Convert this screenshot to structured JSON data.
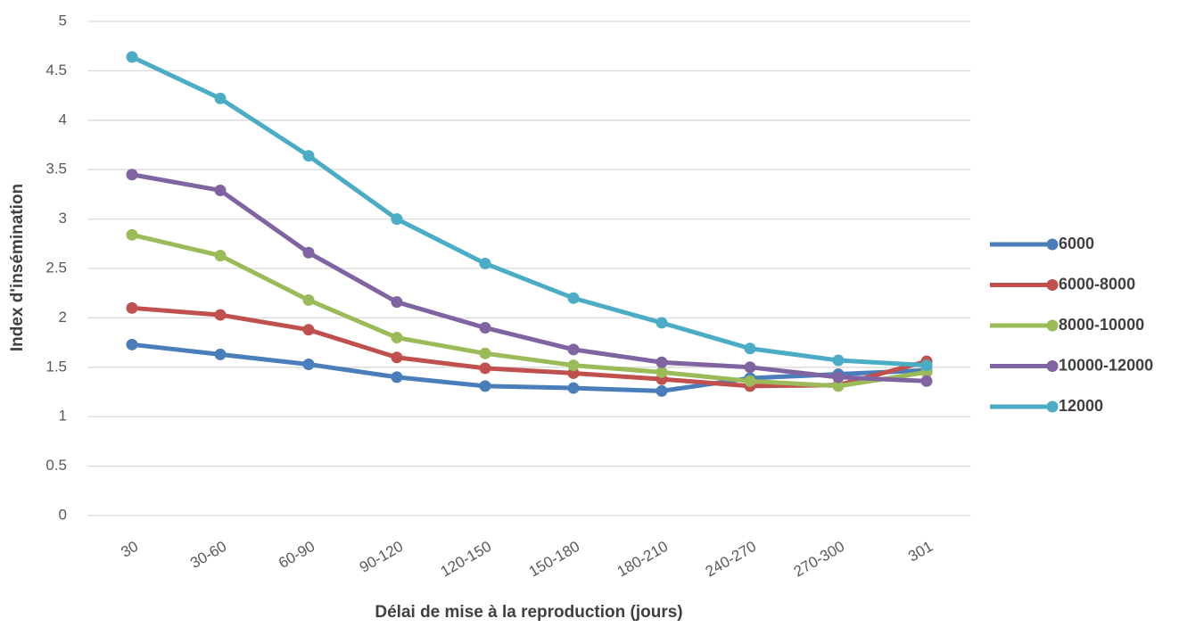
{
  "chart_data": {
    "type": "line",
    "x_label": "Délai de mise à la reproduction (jours)",
    "y_label": "Index d'insémination",
    "categories": [
      "30",
      "30-60",
      "60-90",
      "90-120",
      "120-150",
      "150-180",
      "180-210",
      "240-270",
      "270-300",
      "301"
    ],
    "series": [
      {
        "name": "6000",
        "color": "#4a7ebb",
        "values": [
          1.73,
          1.63,
          1.53,
          1.4,
          1.31,
          1.29,
          1.26,
          1.39,
          1.43,
          1.47
        ]
      },
      {
        "name": "6000-8000",
        "color": "#c0504d",
        "values": [
          2.1,
          2.03,
          1.88,
          1.6,
          1.49,
          1.44,
          1.38,
          1.31,
          1.32,
          1.56
        ]
      },
      {
        "name": "8000-10000",
        "color": "#9bbb59",
        "values": [
          2.84,
          2.63,
          2.18,
          1.8,
          1.64,
          1.52,
          1.45,
          1.36,
          1.31,
          1.45
        ]
      },
      {
        "name": "10000-12000",
        "color": "#8064a2",
        "values": [
          3.45,
          3.29,
          2.66,
          2.16,
          1.9,
          1.68,
          1.55,
          1.5,
          1.4,
          1.36
        ]
      },
      {
        "name": "12000",
        "color": "#4bacc6",
        "values": [
          4.64,
          4.22,
          3.64,
          3.0,
          2.55,
          2.2,
          1.95,
          1.69,
          1.57,
          1.52
        ]
      }
    ],
    "ylim": [
      0,
      5
    ],
    "yticks": [
      0,
      0.5,
      1,
      1.5,
      2,
      2.5,
      3,
      3.5,
      4,
      4.5,
      5
    ],
    "grid": true,
    "legend": "right"
  }
}
